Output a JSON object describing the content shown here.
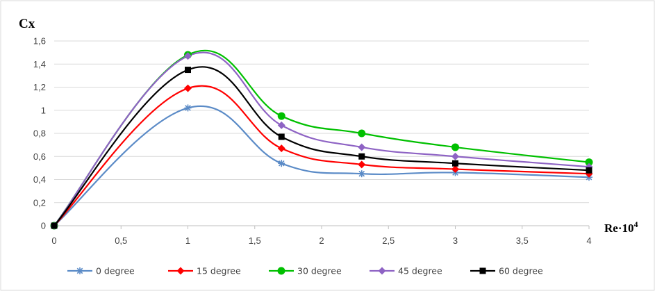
{
  "chart_data": {
    "type": "line",
    "title": "",
    "xlabel": "Re·10",
    "xlabel_superscript": "4",
    "ylabel": "Cx",
    "xlim": [
      0,
      4
    ],
    "ylim": [
      0,
      1.6
    ],
    "x_ticks": [
      "0",
      "0,5",
      "1",
      "1,5",
      "2",
      "2,5",
      "3",
      "3,5",
      "4"
    ],
    "y_ticks": [
      "0",
      "0,2",
      "0,4",
      "0,6",
      "0,8",
      "1",
      "1,2",
      "1,4",
      "1,6"
    ],
    "grid": "horizontal",
    "legend_position": "bottom",
    "x": [
      0,
      1,
      1.7,
      2.3,
      3,
      4
    ],
    "series": [
      {
        "name": "0 degree",
        "color": "#5B8BC7",
        "marker": "asterisk",
        "values": [
          0,
          1.02,
          0.54,
          0.45,
          0.46,
          0.42
        ]
      },
      {
        "name": "15 degree",
        "color": "#FF0000",
        "marker": "diamond",
        "values": [
          0,
          1.19,
          0.67,
          0.53,
          0.49,
          0.45
        ]
      },
      {
        "name": "30 degree",
        "color": "#00C000",
        "marker": "circle",
        "values": [
          0,
          1.48,
          0.95,
          0.8,
          0.68,
          0.55
        ]
      },
      {
        "name": "45 degree",
        "color": "#8E63C4",
        "marker": "diamond",
        "values": [
          0,
          1.47,
          0.87,
          0.68,
          0.6,
          0.51
        ]
      },
      {
        "name": "60 degree",
        "color": "#000000",
        "marker": "square",
        "values": [
          0,
          1.35,
          0.77,
          0.6,
          0.54,
          0.48
        ]
      }
    ]
  }
}
